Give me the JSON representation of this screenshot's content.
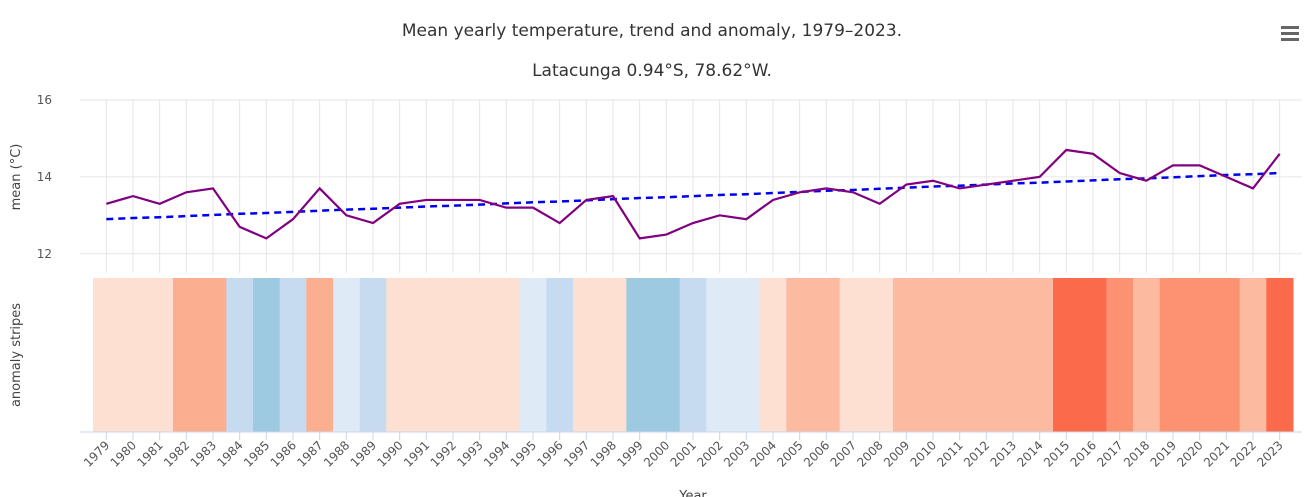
{
  "chart_data": {
    "type": "line",
    "title": "Mean yearly temperature, trend and anomaly, 1979–2023.",
    "subtitle": "Latacunga 0.94°S, 78.62°W.",
    "y_label": "mean (°C)",
    "stripes_label": "anomaly stripes",
    "x_label": "Year",
    "x": [
      1979,
      1980,
      1981,
      1982,
      1983,
      1984,
      1985,
      1986,
      1987,
      1988,
      1989,
      1990,
      1991,
      1992,
      1993,
      1994,
      1995,
      1996,
      1997,
      1998,
      1999,
      2000,
      2001,
      2002,
      2003,
      2004,
      2005,
      2006,
      2007,
      2008,
      2009,
      2010,
      2011,
      2012,
      2013,
      2014,
      2015,
      2016,
      2017,
      2018,
      2019,
      2020,
      2021,
      2022,
      2023
    ],
    "series": [
      {
        "color": "#800080",
        "values": [
          13.3,
          13.5,
          13.3,
          13.6,
          13.7,
          12.7,
          12.4,
          12.9,
          13.7,
          13.0,
          12.8,
          13.3,
          13.4,
          13.4,
          13.4,
          13.2,
          13.2,
          12.8,
          13.4,
          13.5,
          12.4,
          12.5,
          12.8,
          13.0,
          12.9,
          13.4,
          13.6,
          13.7,
          13.6,
          13.3,
          13.8,
          13.9,
          13.7,
          13.8,
          13.9,
          14.0,
          14.7,
          14.6,
          14.1,
          13.9,
          14.3,
          14.3,
          14.0,
          13.7,
          14.6
        ]
      },
      {
        "color": "#0000ee",
        "dashed": true,
        "values": [
          12.9,
          12.93,
          12.95,
          12.98,
          13.01,
          13.04,
          13.06,
          13.09,
          13.12,
          13.15,
          13.17,
          13.2,
          13.23,
          13.25,
          13.28,
          13.31,
          13.34,
          13.36,
          13.39,
          13.42,
          13.45,
          13.47,
          13.5,
          13.53,
          13.55,
          13.58,
          13.61,
          13.64,
          13.66,
          13.69,
          13.72,
          13.75,
          13.77,
          13.8,
          13.83,
          13.85,
          13.88,
          13.91,
          13.94,
          13.96,
          13.99,
          14.02,
          14.05,
          14.07,
          14.1
        ]
      }
    ],
    "stripe_colors": [
      "#fee0d2",
      "#fee0d2",
      "#fee0d2",
      "#fcae91",
      "#fcae91",
      "#c6dbef",
      "#9ecae1",
      "#c6dbef",
      "#fcae91",
      "#deebf7",
      "#c6dbef",
      "#fee0d2",
      "#fee0d2",
      "#fee0d2",
      "#fee0d2",
      "#fee0d2",
      "#deebf7",
      "#c6dbef",
      "#fee0d2",
      "#fee0d2",
      "#9ecae1",
      "#9ecae1",
      "#c6dbef",
      "#deebf7",
      "#deebf7",
      "#fee0d2",
      "#fcbba1",
      "#fcbba1",
      "#fee0d2",
      "#fee0d2",
      "#fcbba1",
      "#fcbba1",
      "#fcbba1",
      "#fcbba1",
      "#fcbba1",
      "#fcbba1",
      "#fb6a4a",
      "#fb6a4a",
      "#fc9272",
      "#fcbba1",
      "#fc9272",
      "#fc9272",
      "#fc9272",
      "#fcbba1",
      "#fb6a4a"
    ],
    "xlim": [
      1978.5,
      2023.5
    ],
    "ylim": [
      11.5,
      16
    ],
    "yticks": [
      12,
      14,
      16
    ],
    "grid": true
  }
}
